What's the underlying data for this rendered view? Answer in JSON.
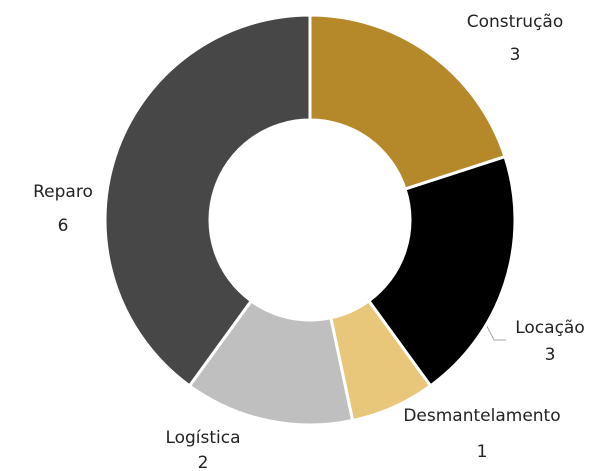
{
  "chart_data": {
    "type": "donut",
    "categories": [
      "Construção",
      "Locação",
      "Desmantelamento",
      "Logística",
      "Reparo"
    ],
    "values": [
      3,
      3,
      1,
      2,
      6
    ],
    "colors": [
      "#b5892a",
      "#000000",
      "#e8c77a",
      "#bfbfbf",
      "#474747"
    ]
  }
}
